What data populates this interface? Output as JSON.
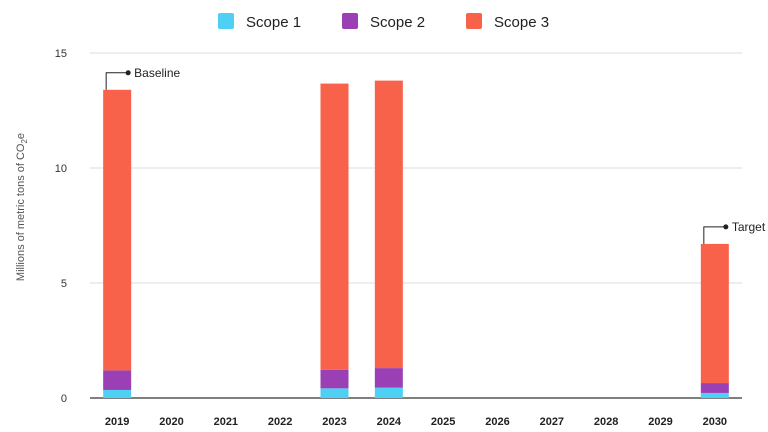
{
  "chart_data": {
    "type": "bar",
    "stacked": true,
    "categories": [
      "2019",
      "2020",
      "2021",
      "2022",
      "2023",
      "2024",
      "2025",
      "2026",
      "2027",
      "2028",
      "2029",
      "2030"
    ],
    "series": [
      {
        "name": "Scope 1",
        "color": "#4dd0f4",
        "values": [
          0.35,
          0,
          0,
          0,
          0.42,
          0.45,
          0,
          0,
          0,
          0,
          0,
          0.22
        ]
      },
      {
        "name": "Scope 2",
        "color": "#9b3fb5",
        "values": [
          0.85,
          0,
          0,
          0,
          0.8,
          0.85,
          0,
          0,
          0,
          0,
          0,
          0.43
        ]
      },
      {
        "name": "Scope 3",
        "color": "#f8624a",
        "values": [
          12.2,
          0,
          0,
          0,
          12.45,
          12.5,
          0,
          0,
          0,
          0,
          0,
          6.05
        ]
      }
    ],
    "ylabel_main": "Millions of metric tons of CO",
    "ylabel_sub": "2",
    "ylabel_end": "e",
    "ylim": [
      0,
      15
    ],
    "yticks": [
      "0",
      "5",
      "10",
      "15"
    ],
    "grid": true,
    "legend_position": "top-center",
    "annotations": [
      {
        "category": "2019",
        "text": "Baseline"
      },
      {
        "category": "2030",
        "text": "Target"
      }
    ]
  }
}
